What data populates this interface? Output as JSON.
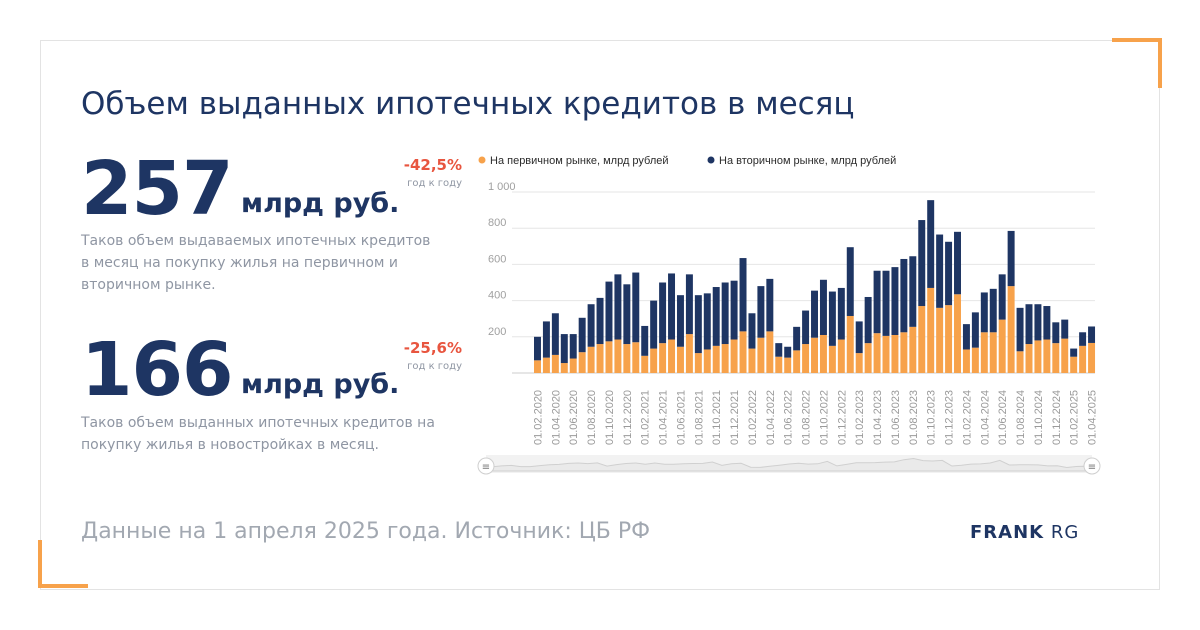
{
  "title": "Объем выданных ипотечных кредитов в месяц",
  "stat1": {
    "value": "257",
    "unit": "млрд руб.",
    "change": "-42,5%",
    "change_note": "год к году",
    "desc_lines": [
      "Таков объем выдаваемых ипотечных кредитов",
      "в месяц на покупку жилья на первичном и",
      "вторичном рынке."
    ]
  },
  "stat2": {
    "value": "166",
    "unit": "млрд руб.",
    "change": "-25,6%",
    "change_note": "год к году",
    "desc_lines": [
      "Таков объем выданных ипотечных кредитов на",
      "покупку жилья в новостройках в месяц."
    ]
  },
  "footer": "Данные на 1 апреля 2025 года. Источник: ЦБ РФ",
  "logo": {
    "brand": "FRANK",
    "suffix": "RG"
  },
  "colors": {
    "primary": "#f7a24b",
    "secondary": "#1e3563",
    "accent_red": "#e8553f"
  },
  "chart_data": {
    "type": "bar",
    "stacked": true,
    "title": "",
    "xlabel": "",
    "ylabel": "",
    "ylim": [
      0,
      1000
    ],
    "y_ticks": [
      "200",
      "400",
      "600",
      "800",
      "1 000"
    ],
    "grid": true,
    "legend_position": "top",
    "x_tick_labels": [
      "01.02.2020",
      "01.04.2020",
      "01.06.2020",
      "01.08.2020",
      "01.10.2020",
      "01.12.2020",
      "01.02.2021",
      "01.04.2021",
      "01.06.2021",
      "01.08.2021",
      "01.10.2021",
      "01.12.2021",
      "01.02.2022",
      "01.04.2022",
      "01.06.2022",
      "01.08.2022",
      "01.10.2022",
      "01.12.2022",
      "01.02.2023",
      "01.04.2023",
      "01.06.2023",
      "01.08.2023",
      "01.10.2023",
      "01.12.2023",
      "01.02.2024",
      "01.04.2024",
      "01.06.2024",
      "01.08.2024",
      "01.10.2024",
      "01.12.2024",
      "01.02.2025",
      "01.04.2025"
    ],
    "series": [
      {
        "name": "На первичном рынке, млрд рублей",
        "color": "#f7a24b",
        "values": [
          70,
          85,
          100,
          55,
          80,
          115,
          145,
          160,
          175,
          185,
          160,
          170,
          95,
          135,
          165,
          185,
          145,
          215,
          110,
          130,
          150,
          160,
          185,
          230,
          135,
          195,
          230,
          90,
          85,
          125,
          160,
          195,
          210,
          150,
          185,
          315,
          110,
          165,
          220,
          205,
          210,
          225,
          255,
          370,
          470,
          360,
          375,
          435,
          130,
          140,
          225,
          225,
          295,
          480,
          120,
          160,
          180,
          185,
          165,
          190,
          90,
          150,
          166
        ]
      },
      {
        "name": "На вторичном рынке, млрд рублей",
        "color": "#1e3563",
        "values": [
          130,
          200,
          230,
          160,
          135,
          190,
          235,
          255,
          330,
          360,
          330,
          385,
          165,
          265,
          335,
          365,
          285,
          330,
          320,
          310,
          325,
          340,
          325,
          405,
          195,
          285,
          290,
          75,
          60,
          130,
          185,
          260,
          305,
          300,
          285,
          380,
          175,
          255,
          345,
          360,
          375,
          405,
          390,
          475,
          485,
          405,
          350,
          345,
          140,
          195,
          220,
          240,
          250,
          305,
          240,
          220,
          200,
          185,
          115,
          105,
          45,
          75,
          91
        ]
      }
    ]
  }
}
